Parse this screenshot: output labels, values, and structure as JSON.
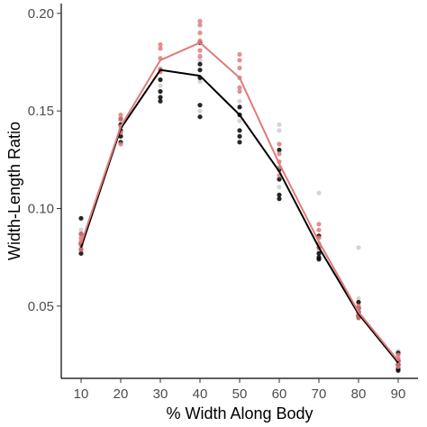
{
  "chart_data": {
    "type": "scatter",
    "title": "",
    "xlabel": "% Width Along Body",
    "ylabel": "Width-Length Ratio",
    "xlim": [
      5,
      95
    ],
    "ylim": [
      0.013,
      0.205
    ],
    "x_ticks": [
      10,
      20,
      30,
      40,
      50,
      60,
      70,
      80,
      90
    ],
    "x_tick_labels": [
      "10",
      "20",
      "30",
      "40",
      "50",
      "60",
      "70",
      "80",
      "90"
    ],
    "y_ticks": [
      0.05,
      0.1,
      0.15,
      0.2
    ],
    "y_tick_labels": [
      "0.05",
      "0.10",
      "0.15",
      "0.20"
    ],
    "grid": false,
    "legend": "none",
    "series": [
      {
        "color": "#000000",
        "line": [
          {
            "x": 10,
            "y": 0.08
          },
          {
            "x": 20,
            "y": 0.141
          },
          {
            "x": 30,
            "y": 0.171
          },
          {
            "x": 40,
            "y": 0.168
          },
          {
            "x": 50,
            "y": 0.148
          },
          {
            "x": 60,
            "y": 0.119
          },
          {
            "x": 70,
            "y": 0.08
          },
          {
            "x": 80,
            "y": 0.046
          },
          {
            "x": 90,
            "y": 0.021
          }
        ],
        "points": [
          {
            "x": 10,
            "y": 0.095
          },
          {
            "x": 10,
            "y": 0.087
          },
          {
            "x": 10,
            "y": 0.082
          },
          {
            "x": 10,
            "y": 0.079
          },
          {
            "x": 10,
            "y": 0.077
          },
          {
            "x": 20,
            "y": 0.146
          },
          {
            "x": 20,
            "y": 0.143
          },
          {
            "x": 20,
            "y": 0.14
          },
          {
            "x": 20,
            "y": 0.137
          },
          {
            "x": 20,
            "y": 0.134
          },
          {
            "x": 30,
            "y": 0.166
          },
          {
            "x": 30,
            "y": 0.16
          },
          {
            "x": 30,
            "y": 0.157
          },
          {
            "x": 30,
            "y": 0.155
          },
          {
            "x": 30,
            "y": 0.171
          },
          {
            "x": 40,
            "y": 0.185
          },
          {
            "x": 40,
            "y": 0.174
          },
          {
            "x": 40,
            "y": 0.171
          },
          {
            "x": 40,
            "y": 0.167
          },
          {
            "x": 40,
            "y": 0.153
          },
          {
            "x": 40,
            "y": 0.147
          },
          {
            "x": 50,
            "y": 0.152
          },
          {
            "x": 50,
            "y": 0.148
          },
          {
            "x": 50,
            "y": 0.14
          },
          {
            "x": 50,
            "y": 0.137
          },
          {
            "x": 50,
            "y": 0.134
          },
          {
            "x": 60,
            "y": 0.13
          },
          {
            "x": 60,
            "y": 0.12
          },
          {
            "x": 60,
            "y": 0.115
          },
          {
            "x": 60,
            "y": 0.107
          },
          {
            "x": 60,
            "y": 0.105
          },
          {
            "x": 70,
            "y": 0.086
          },
          {
            "x": 70,
            "y": 0.08
          },
          {
            "x": 70,
            "y": 0.077
          },
          {
            "x": 70,
            "y": 0.075
          },
          {
            "x": 70,
            "y": 0.074
          },
          {
            "x": 80,
            "y": 0.052
          },
          {
            "x": 80,
            "y": 0.049
          },
          {
            "x": 80,
            "y": 0.047
          },
          {
            "x": 80,
            "y": 0.045
          },
          {
            "x": 80,
            "y": 0.044
          },
          {
            "x": 90,
            "y": 0.026
          },
          {
            "x": 90,
            "y": 0.022
          },
          {
            "x": 90,
            "y": 0.02
          },
          {
            "x": 90,
            "y": 0.018
          },
          {
            "x": 90,
            "y": 0.017
          }
        ]
      },
      {
        "color": "#e07a7a",
        "line": [
          {
            "x": 10,
            "y": 0.082
          },
          {
            "x": 20,
            "y": 0.142
          },
          {
            "x": 30,
            "y": 0.176
          },
          {
            "x": 40,
            "y": 0.185
          },
          {
            "x": 50,
            "y": 0.167
          },
          {
            "x": 60,
            "y": 0.123
          },
          {
            "x": 70,
            "y": 0.083
          },
          {
            "x": 80,
            "y": 0.047
          },
          {
            "x": 90,
            "y": 0.022
          }
        ],
        "points": [
          {
            "x": 10,
            "y": 0.087
          },
          {
            "x": 10,
            "y": 0.085
          },
          {
            "x": 10,
            "y": 0.083
          },
          {
            "x": 10,
            "y": 0.081
          },
          {
            "x": 10,
            "y": 0.079
          },
          {
            "x": 20,
            "y": 0.148
          },
          {
            "x": 20,
            "y": 0.146
          },
          {
            "x": 20,
            "y": 0.142
          },
          {
            "x": 20,
            "y": 0.139
          },
          {
            "x": 20,
            "y": 0.133
          },
          {
            "x": 30,
            "y": 0.184
          },
          {
            "x": 30,
            "y": 0.182
          },
          {
            "x": 30,
            "y": 0.177
          },
          {
            "x": 30,
            "y": 0.171
          },
          {
            "x": 30,
            "y": 0.17
          },
          {
            "x": 40,
            "y": 0.196
          },
          {
            "x": 40,
            "y": 0.194
          },
          {
            "x": 40,
            "y": 0.19
          },
          {
            "x": 40,
            "y": 0.186
          },
          {
            "x": 40,
            "y": 0.181
          },
          {
            "x": 40,
            "y": 0.178
          },
          {
            "x": 50,
            "y": 0.179
          },
          {
            "x": 50,
            "y": 0.176
          },
          {
            "x": 50,
            "y": 0.172
          },
          {
            "x": 50,
            "y": 0.167
          },
          {
            "x": 50,
            "y": 0.162
          },
          {
            "x": 50,
            "y": 0.16
          },
          {
            "x": 60,
            "y": 0.133
          },
          {
            "x": 60,
            "y": 0.128
          },
          {
            "x": 60,
            "y": 0.124
          },
          {
            "x": 60,
            "y": 0.121
          },
          {
            "x": 60,
            "y": 0.117
          },
          {
            "x": 70,
            "y": 0.092
          },
          {
            "x": 70,
            "y": 0.089
          },
          {
            "x": 70,
            "y": 0.085
          },
          {
            "x": 70,
            "y": 0.082
          },
          {
            "x": 70,
            "y": 0.08
          },
          {
            "x": 80,
            "y": 0.05
          },
          {
            "x": 80,
            "y": 0.048
          },
          {
            "x": 80,
            "y": 0.046
          },
          {
            "x": 80,
            "y": 0.044
          },
          {
            "x": 90,
            "y": 0.025
          },
          {
            "x": 90,
            "y": 0.023
          },
          {
            "x": 90,
            "y": 0.021
          },
          {
            "x": 90,
            "y": 0.019
          }
        ]
      },
      {
        "color": "#b3b3b3",
        "points": [
          {
            "x": 10,
            "y": 0.089
          },
          {
            "x": 10,
            "y": 0.084
          },
          {
            "x": 20,
            "y": 0.145
          },
          {
            "x": 20,
            "y": 0.138
          },
          {
            "x": 30,
            "y": 0.172
          },
          {
            "x": 30,
            "y": 0.163
          },
          {
            "x": 40,
            "y": 0.176
          },
          {
            "x": 40,
            "y": 0.165
          },
          {
            "x": 40,
            "y": 0.15
          },
          {
            "x": 50,
            "y": 0.155
          },
          {
            "x": 50,
            "y": 0.145
          },
          {
            "x": 60,
            "y": 0.143
          },
          {
            "x": 60,
            "y": 0.14
          },
          {
            "x": 60,
            "y": 0.111
          },
          {
            "x": 70,
            "y": 0.108
          },
          {
            "x": 70,
            "y": 0.078
          },
          {
            "x": 80,
            "y": 0.08
          },
          {
            "x": 80,
            "y": 0.054
          },
          {
            "x": 80,
            "y": 0.05
          },
          {
            "x": 90,
            "y": 0.027
          },
          {
            "x": 90,
            "y": 0.024
          }
        ]
      }
    ]
  }
}
